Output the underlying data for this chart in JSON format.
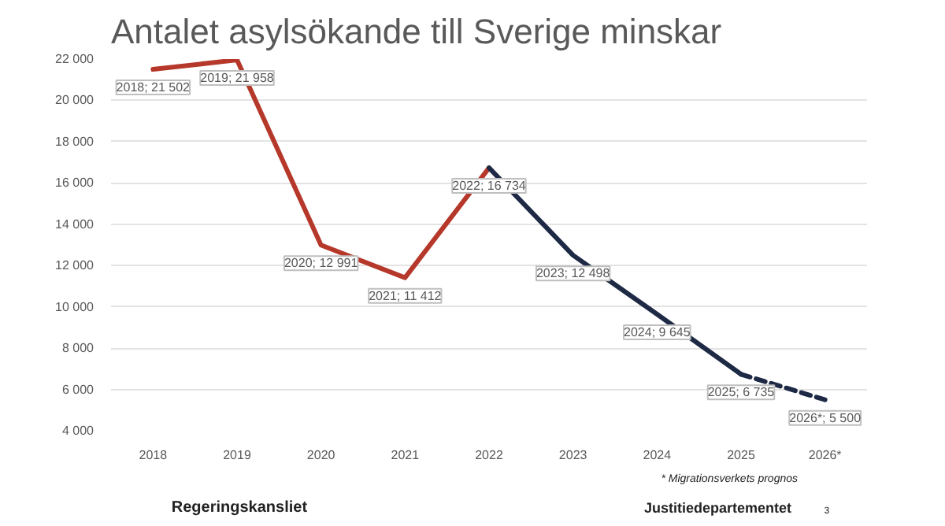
{
  "chart_data": {
    "type": "line",
    "title": "Antalet asylsökande till Sverige minskar",
    "categories": [
      "2018",
      "2019",
      "2020",
      "2021",
      "2022",
      "2023",
      "2024",
      "2025",
      "2026*"
    ],
    "series": [
      {
        "color": "#b5382a",
        "line_style": "solid",
        "values": [
          21502,
          21958,
          12991,
          11412,
          16734,
          null,
          null,
          null,
          null
        ],
        "value_labels": [
          "2018; 21 502",
          "2019; 21 958",
          "2020; 12 991",
          "2021; 11 412",
          "2022; 16 734",
          null,
          null,
          null,
          null
        ]
      },
      {
        "color": "#1e2a45",
        "line_style": "solid",
        "values": [
          null,
          null,
          null,
          null,
          16734,
          12498,
          9645,
          6735,
          null
        ],
        "value_labels": [
          null,
          null,
          null,
          null,
          null,
          "2023; 12 498",
          "2024; 9 645",
          "2025; 6 735",
          null
        ]
      },
      {
        "color": "#1e2a45",
        "line_style": "dashed",
        "values": [
          null,
          null,
          null,
          null,
          null,
          null,
          null,
          6735,
          5500
        ],
        "value_labels": [
          null,
          null,
          null,
          null,
          null,
          null,
          null,
          null,
          "2026*; 5 500"
        ]
      }
    ],
    "ylim": [
      4000,
      22000
    ],
    "yticks": [
      {
        "value": 4000,
        "label": "4 000"
      },
      {
        "value": 6000,
        "label": "6 000"
      },
      {
        "value": 8000,
        "label": "8 000"
      },
      {
        "value": 10000,
        "label": "10 000"
      },
      {
        "value": 12000,
        "label": "12 000"
      },
      {
        "value": 14000,
        "label": "14 000"
      },
      {
        "value": 16000,
        "label": "16 000"
      },
      {
        "value": 18000,
        "label": "18 000"
      },
      {
        "value": 20000,
        "label": "20 000"
      },
      {
        "value": 22000,
        "label": "22 000"
      }
    ],
    "grid": "y",
    "marker": "none",
    "annotations": [
      "* Migrationsverkets prognos",
      "Regeringskansliet",
      "Justitiedepartementet",
      "3"
    ]
  }
}
